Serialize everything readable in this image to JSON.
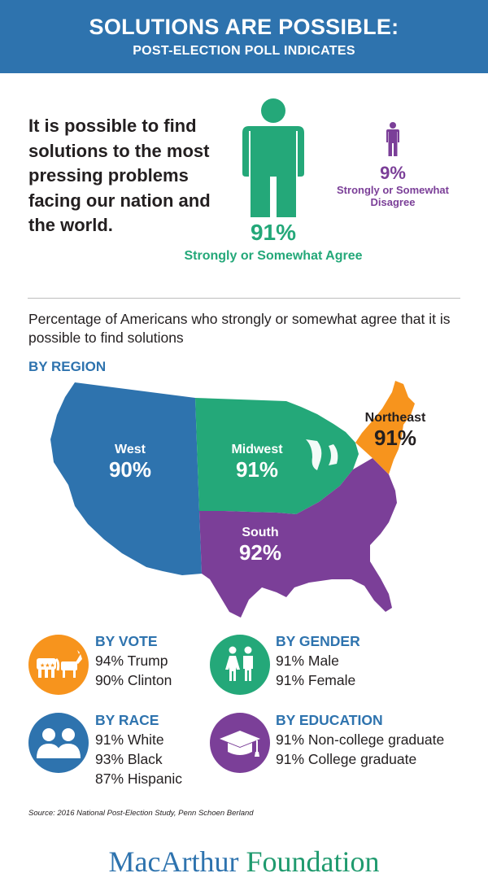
{
  "header": {
    "title": "SOLUTIONS ARE POSSIBLE:",
    "subtitle": "POST-ELECTION POLL INDICATES"
  },
  "statement": "It is possible to find solutions to the most pressing problems facing our nation and the world.",
  "agree": {
    "percent": "91%",
    "label": "Strongly or Somewhat Agree",
    "icon": "person-icon",
    "color": "#24a879"
  },
  "disagree": {
    "percent": "9%",
    "label": "Strongly or Somewhat Disagree",
    "icon": "person-icon",
    "color": "#7b3f98"
  },
  "region_intro": "Percentage of Americans who strongly or somewhat agree that it is possible to find solutions",
  "region_title": "BY REGION",
  "regions": {
    "west": {
      "name": "West",
      "value": "90%",
      "color": "#2e73ae"
    },
    "midwest": {
      "name": "Midwest",
      "value": "91%",
      "color": "#24a879"
    },
    "northeast": {
      "name": "Northeast",
      "value": "91%",
      "color": "#f7941d"
    },
    "south": {
      "name": "South",
      "value": "92%",
      "color": "#7b3f98"
    }
  },
  "categories": {
    "vote": {
      "title": "BY VOTE",
      "icon": "elephant-donkey-icon",
      "color": "#f7941d",
      "lines": [
        "94%  Trump",
        "90%  Clinton"
      ]
    },
    "gender": {
      "title": "BY GENDER",
      "icon": "man-woman-icon",
      "color": "#24a879",
      "lines": [
        "91%  Male",
        "91%  Female"
      ]
    },
    "race": {
      "title": "BY RACE",
      "icon": "people-icon",
      "color": "#2e73ae",
      "lines": [
        "91%  White",
        "93%  Black",
        "87%  Hispanic"
      ]
    },
    "education": {
      "title": "BY EDUCATION",
      "icon": "graduation-cap-icon",
      "color": "#7b3f98",
      "lines": [
        "91%  Non-college graduate",
        "91%  College graduate"
      ]
    }
  },
  "source": "Source: 2016 National Post-Election Study, Penn Schoen Berland",
  "logo": {
    "part1": "MacArthur",
    "part2": "Foundation"
  }
}
